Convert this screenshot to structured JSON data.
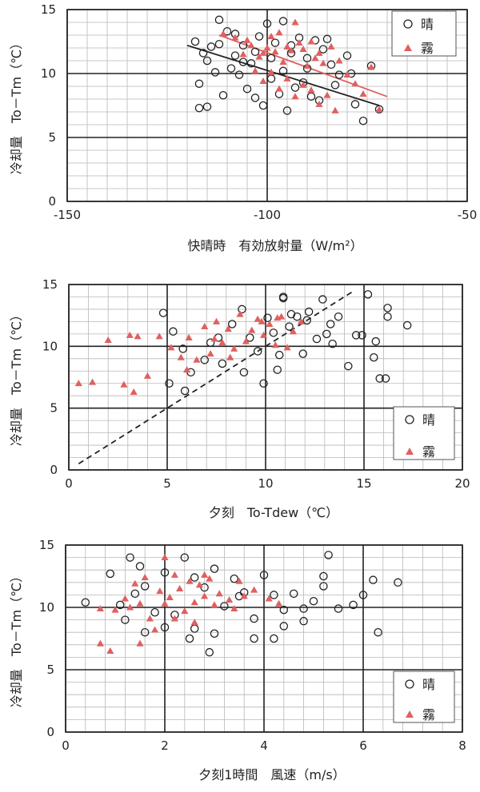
{
  "chart_data": [
    {
      "type": "scatter",
      "xlabel": "快晴時　有効放射量（W/m²）",
      "ylabel": "冷却量　To－Tm（℃）",
      "xlim": [
        -150,
        -50
      ],
      "ylim": [
        0,
        15
      ],
      "xticks": [
        "-150",
        "-100",
        "-50"
      ],
      "yticks": [
        "0",
        "5",
        "10",
        "15"
      ],
      "legend": {
        "placement": "top-right"
      },
      "series": [
        {
          "name": "晴",
          "marker": "circle",
          "color": "#222222",
          "points": [
            [
              -118,
              12.5
            ],
            [
              -116,
              11.6
            ],
            [
              -114,
              12.1
            ],
            [
              -112,
              14.2
            ],
            [
              -110,
              13.3
            ],
            [
              -108,
              11.4
            ],
            [
              -106,
              12.2
            ],
            [
              -104,
              10.8
            ],
            [
              -102,
              12.9
            ],
            [
              -100,
              13.9
            ],
            [
              -98,
              12.4
            ],
            [
              -96,
              14.1
            ],
            [
              -94,
              11.6
            ],
            [
              -92,
              12.8
            ],
            [
              -90,
              11.2
            ],
            [
              -88,
              12.6
            ],
            [
              -86,
              11.9
            ],
            [
              -84,
              10.7
            ],
            [
              -82,
              9.9
            ],
            [
              -80,
              11.4
            ],
            [
              -78,
              7.6
            ],
            [
              -76,
              6.3
            ],
            [
              -74,
              10.6
            ],
            [
              -72,
              7.2
            ],
            [
              -117,
              9.2
            ],
            [
              -117,
              7.3
            ],
            [
              -115,
              7.4
            ],
            [
              -113,
              10.1
            ],
            [
              -111,
              8.3
            ],
            [
              -109,
              10.4
            ],
            [
              -107,
              9.9
            ],
            [
              -105,
              8.8
            ],
            [
              -103,
              8.1
            ],
            [
              -101,
              7.5
            ],
            [
              -99,
              9.6
            ],
            [
              -97,
              8.4
            ],
            [
              -95,
              7.1
            ],
            [
              -93,
              8.9
            ],
            [
              -91,
              9.3
            ],
            [
              -89,
              8.2
            ],
            [
              -87,
              7.9
            ],
            [
              -115,
              11.0
            ],
            [
              -112,
              12.3
            ],
            [
              -108,
              13.1
            ],
            [
              -106,
              10.9
            ],
            [
              -103,
              11.7
            ],
            [
              -99,
              11.2
            ],
            [
              -96,
              10.2
            ],
            [
              -94,
              12.2
            ],
            [
              -90,
              10.4
            ],
            [
              -85,
              12.7
            ],
            [
              -83,
              9.1
            ],
            [
              -79,
              10.0
            ]
          ]
        },
        {
          "name": "霧",
          "marker": "triangle",
          "color": "#e06060",
          "points": [
            [
              -111,
              13.1
            ],
            [
              -108,
              12.8
            ],
            [
              -106,
              11.5
            ],
            [
              -104,
              12.2
            ],
            [
              -102,
              11.3
            ],
            [
              -100,
              12.0
            ],
            [
              -98,
              11.7
            ],
            [
              -96,
              10.9
            ],
            [
              -94,
              11.8
            ],
            [
              -92,
              12.4
            ],
            [
              -90,
              10.6
            ],
            [
              -88,
              11.2
            ],
            [
              -86,
              10.8
            ],
            [
              -84,
              12.1
            ],
            [
              -82,
              11.0
            ],
            [
              -80,
              9.9
            ],
            [
              -78,
              9.2
            ],
            [
              -76,
              8.4
            ],
            [
              -74,
              10.5
            ],
            [
              -72,
              7.2
            ],
            [
              -103,
              10.2
            ],
            [
              -101,
              9.4
            ],
            [
              -99,
              10.1
            ],
            [
              -97,
              8.8
            ],
            [
              -95,
              9.6
            ],
            [
              -93,
              8.2
            ],
            [
              -91,
              9.1
            ],
            [
              -89,
              8.7
            ],
            [
              -87,
              7.6
            ],
            [
              -85,
              8.3
            ],
            [
              -83,
              7.1
            ],
            [
              -105,
              12.6
            ],
            [
              -97,
              13.2
            ],
            [
              -93,
              14.0
            ],
            [
              -91,
              11.9
            ],
            [
              -89,
              12.5
            ],
            [
              -87,
              11.6
            ],
            [
              -99,
              12.9
            ],
            [
              -101,
              11.6
            ],
            [
              -95,
              12.1
            ]
          ]
        }
      ],
      "trendlines": [
        {
          "series": "晴",
          "color": "#222222",
          "x": [
            -120,
            -72
          ],
          "y": [
            12.2,
            7.5
          ]
        },
        {
          "series": "霧",
          "color": "#e06060",
          "x": [
            -112,
            -70
          ],
          "y": [
            13.0,
            8.2
          ]
        }
      ]
    },
    {
      "type": "scatter",
      "xlabel": "夕刻　To-Tdew（℃）",
      "ylabel": "冷却量　To－Tm（℃）",
      "xlim": [
        0,
        20
      ],
      "ylim": [
        0,
        15
      ],
      "xticks": [
        "0",
        "5",
        "10",
        "15",
        "20"
      ],
      "yticks": [
        "0",
        "5",
        "10",
        "15"
      ],
      "legend": {
        "placement": "bottom-right"
      },
      "series": [
        {
          "name": "晴",
          "marker": "circle",
          "color": "#222222",
          "points": [
            [
              4.8,
              12.7
            ],
            [
              5.3,
              11.2
            ],
            [
              5.8,
              9.8
            ],
            [
              6.2,
              7.9
            ],
            [
              6.9,
              8.9
            ],
            [
              7.2,
              10.3
            ],
            [
              7.8,
              8.6
            ],
            [
              8.3,
              11.8
            ],
            [
              8.8,
              13.0
            ],
            [
              9.2,
              10.7
            ],
            [
              9.6,
              9.6
            ],
            [
              10.1,
              12.3
            ],
            [
              10.4,
              11.1
            ],
            [
              10.6,
              8.1
            ],
            [
              10.9,
              13.9
            ],
            [
              11.2,
              11.6
            ],
            [
              11.6,
              12.4
            ],
            [
              12.1,
              12.1
            ],
            [
              12.6,
              10.6
            ],
            [
              12.9,
              13.8
            ],
            [
              13.3,
              11.8
            ],
            [
              13.7,
              12.4
            ],
            [
              14.2,
              8.4
            ],
            [
              14.6,
              10.9
            ],
            [
              15.2,
              14.2
            ],
            [
              15.6,
              10.4
            ],
            [
              15.8,
              7.4
            ],
            [
              16.2,
              13.1
            ],
            [
              16.1,
              7.4
            ],
            [
              17.2,
              11.7
            ],
            [
              5.1,
              7.0
            ],
            [
              5.9,
              6.4
            ],
            [
              8.9,
              7.9
            ],
            [
              10.7,
              9.3
            ],
            [
              11.3,
              12.6
            ],
            [
              12.2,
              12.8
            ],
            [
              13.1,
              11.0
            ],
            [
              14.9,
              10.9
            ],
            [
              15.5,
              9.1
            ],
            [
              16.2,
              12.4
            ],
            [
              9.9,
              7.0
            ],
            [
              10.9,
              14.0
            ],
            [
              7.6,
              10.7
            ],
            [
              11.9,
              9.4
            ],
            [
              13.4,
              10.2
            ]
          ]
        },
        {
          "name": "霧",
          "marker": "triangle",
          "color": "#e06060",
          "points": [
            [
              0.5,
              7.0
            ],
            [
              1.2,
              7.1
            ],
            [
              2.0,
              10.5
            ],
            [
              2.8,
              6.9
            ],
            [
              3.1,
              10.9
            ],
            [
              3.5,
              10.8
            ],
            [
              4.0,
              7.6
            ],
            [
              4.6,
              10.8
            ],
            [
              5.2,
              9.9
            ],
            [
              5.7,
              9.1
            ],
            [
              6.1,
              10.7
            ],
            [
              6.5,
              8.9
            ],
            [
              6.9,
              11.6
            ],
            [
              7.2,
              9.4
            ],
            [
              7.5,
              12.0
            ],
            [
              7.8,
              10.3
            ],
            [
              8.1,
              11.4
            ],
            [
              8.4,
              9.8
            ],
            [
              8.7,
              12.6
            ],
            [
              9.0,
              10.4
            ],
            [
              9.3,
              11.3
            ],
            [
              9.6,
              12.2
            ],
            [
              9.9,
              10.9
            ],
            [
              10.2,
              11.8
            ],
            [
              10.5,
              10.1
            ],
            [
              10.8,
              12.4
            ],
            [
              11.1,
              9.9
            ],
            [
              11.4,
              11.2
            ],
            [
              11.8,
              12.0
            ],
            [
              3.3,
              6.3
            ],
            [
              6.0,
              8.1
            ],
            [
              8.2,
              9.1
            ],
            [
              9.8,
              12.0
            ],
            [
              10.6,
              12.3
            ],
            [
              7.4,
              10.6
            ]
          ]
        }
      ],
      "trendlines": [
        {
          "series": "reference",
          "color": "#222222",
          "dash": true,
          "x": [
            0.5,
            14.5
          ],
          "y": [
            0.5,
            14.5
          ]
        }
      ]
    },
    {
      "type": "scatter",
      "xlabel": "夕刻1時間　風速（m/s）",
      "ylabel": "冷却量　To－Tm（℃）",
      "xlim": [
        0,
        8
      ],
      "ylim": [
        0,
        15
      ],
      "xticks": [
        "0",
        "2",
        "4",
        "6",
        "8"
      ],
      "yticks": [
        "0",
        "5",
        "10",
        "15"
      ],
      "legend": {
        "placement": "bottom-right"
      },
      "series": [
        {
          "name": "晴",
          "marker": "circle",
          "color": "#222222",
          "points": [
            [
              0.4,
              10.4
            ],
            [
              0.9,
              12.7
            ],
            [
              1.2,
              9.0
            ],
            [
              1.3,
              14.0
            ],
            [
              1.5,
              13.3
            ],
            [
              1.6,
              11.7
            ],
            [
              1.8,
              9.6
            ],
            [
              2.0,
              12.8
            ],
            [
              2.2,
              9.4
            ],
            [
              2.4,
              14.0
            ],
            [
              2.6,
              12.4
            ],
            [
              2.8,
              11.6
            ],
            [
              3.0,
              13.1
            ],
            [
              3.2,
              10.1
            ],
            [
              3.4,
              12.3
            ],
            [
              3.6,
              11.2
            ],
            [
              3.8,
              9.1
            ],
            [
              4.0,
              12.6
            ],
            [
              4.2,
              11.0
            ],
            [
              4.4,
              9.8
            ],
            [
              4.6,
              11.1
            ],
            [
              4.8,
              9.9
            ],
            [
              5.0,
              10.5
            ],
            [
              5.2,
              12.5
            ],
            [
              5.3,
              14.2
            ],
            [
              5.5,
              9.9
            ],
            [
              5.8,
              10.2
            ],
            [
              6.0,
              11.0
            ],
            [
              6.2,
              12.2
            ],
            [
              6.3,
              8.0
            ],
            [
              6.7,
              12.0
            ],
            [
              1.6,
              8.0
            ],
            [
              2.5,
              7.5
            ],
            [
              2.9,
              6.4
            ],
            [
              3.8,
              7.5
            ],
            [
              4.2,
              7.5
            ],
            [
              4.4,
              8.5
            ],
            [
              2.0,
              8.4
            ],
            [
              1.1,
              10.2
            ],
            [
              3.0,
              7.9
            ],
            [
              5.2,
              11.7
            ],
            [
              4.8,
              8.9
            ],
            [
              2.6,
              8.3
            ],
            [
              3.5,
              10.9
            ],
            [
              1.4,
              11.1
            ]
          ]
        },
        {
          "name": "霧",
          "marker": "triangle",
          "color": "#e06060",
          "points": [
            [
              0.7,
              9.9
            ],
            [
              0.7,
              7.1
            ],
            [
              0.9,
              6.5
            ],
            [
              1.0,
              9.8
            ],
            [
              1.2,
              10.7
            ],
            [
              1.4,
              11.9
            ],
            [
              1.5,
              10.3
            ],
            [
              1.6,
              12.4
            ],
            [
              1.7,
              9.1
            ],
            [
              1.9,
              11.3
            ],
            [
              2.0,
              14.0
            ],
            [
              2.1,
              10.8
            ],
            [
              2.2,
              12.6
            ],
            [
              2.3,
              11.5
            ],
            [
              2.4,
              9.7
            ],
            [
              2.5,
              12.1
            ],
            [
              2.6,
              10.4
            ],
            [
              2.7,
              11.8
            ],
            [
              2.8,
              10.9
            ],
            [
              2.9,
              12.3
            ],
            [
              3.0,
              10.2
            ],
            [
              3.1,
              11.1
            ],
            [
              3.3,
              10.6
            ],
            [
              3.5,
              12.1
            ],
            [
              3.6,
              10.9
            ],
            [
              3.8,
              11.4
            ],
            [
              4.1,
              10.7
            ],
            [
              4.3,
              10.3
            ],
            [
              1.5,
              7.1
            ],
            [
              1.8,
              8.2
            ],
            [
              2.2,
              9.1
            ],
            [
              2.6,
              8.8
            ],
            [
              1.3,
              10.0
            ],
            [
              3.4,
              9.9
            ],
            [
              2.0,
              10.3
            ],
            [
              2.8,
              12.6
            ]
          ]
        }
      ],
      "trendlines": []
    }
  ]
}
